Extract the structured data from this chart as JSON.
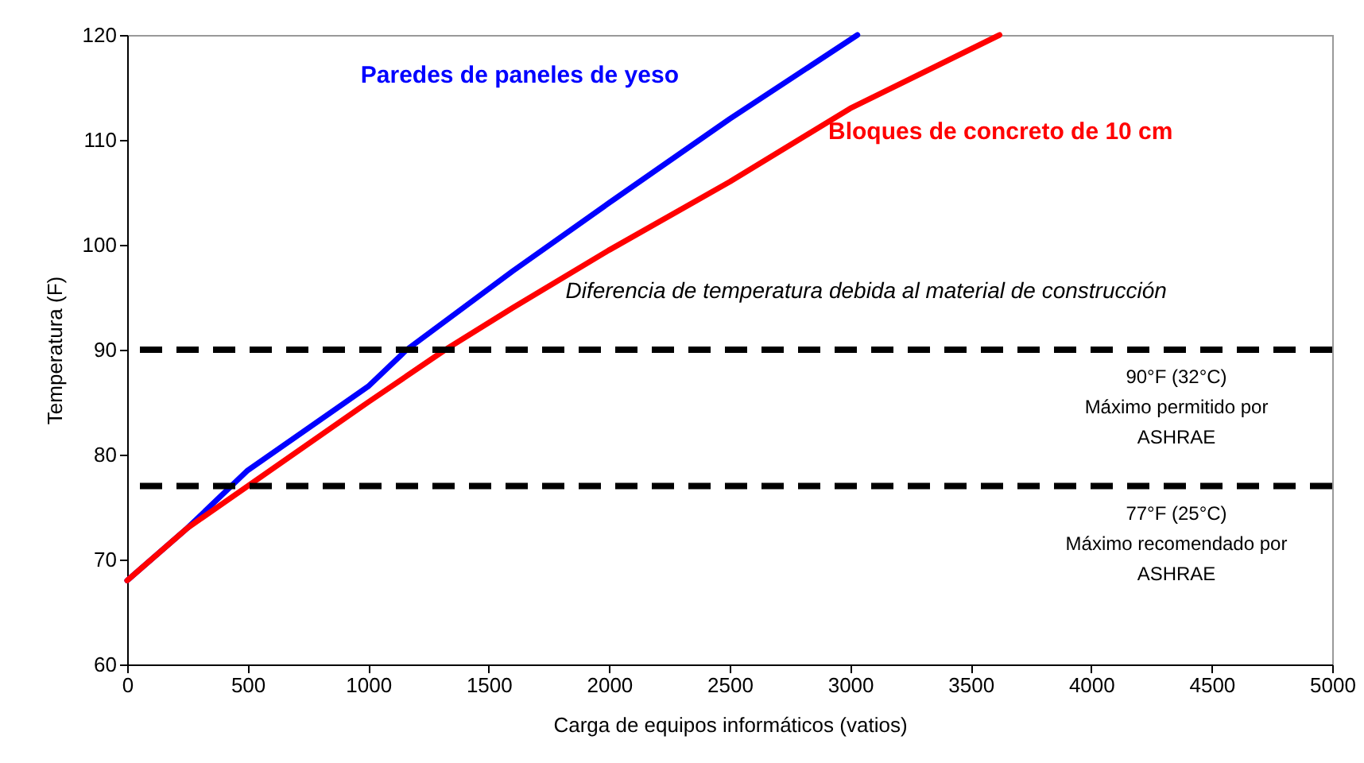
{
  "chart_data": {
    "type": "line",
    "xlabel": "Carga de  equipos informáticos (vatios)",
    "ylabel": "Temperatura (F)",
    "xlim": [
      0,
      5000
    ],
    "xticks": [
      0,
      500,
      1000,
      1500,
      2000,
      2500,
      3000,
      3500,
      4000,
      4500,
      5000
    ],
    "ylim": [
      60,
      120
    ],
    "yticks": [
      60,
      70,
      80,
      90,
      100,
      110,
      120
    ],
    "grid": false,
    "marker": "none",
    "line_style": "solid",
    "series": [
      {
        "name": "Paredes de paneles de yeso",
        "color": "#0000ff",
        "x": [
          0,
          250,
          500,
          1000,
          1160,
          1600,
          2000,
          2500,
          3030
        ],
        "values": [
          68,
          73,
          78.5,
          86.5,
          90,
          97.5,
          104,
          112,
          120
        ]
      },
      {
        "name": "Bloques de concreto de 10 cm",
        "color": "#ff0000",
        "x": [
          0,
          250,
          500,
          1000,
          1320,
          1600,
          2000,
          2500,
          3000,
          3620
        ],
        "values": [
          68,
          73,
          77,
          85,
          90,
          94,
          99.5,
          106,
          113,
          120
        ]
      }
    ],
    "ref_lines": [
      {
        "axis": "y",
        "value": 90,
        "label": "90°F (32°C)\nMáximo permitido por\nASHRAE",
        "color": "#000000",
        "line_style": "dashed"
      },
      {
        "axis": "y",
        "value": 77,
        "label": "77°F (25°C)\nMáximo recomendado por\nASHRAE",
        "color": "#000000",
        "line_style": "dashed"
      }
    ],
    "annotations": [
      {
        "text": "Diferencia de temperatura debida al material de construcción",
        "x": 1700,
        "y": 95.5
      }
    ]
  }
}
